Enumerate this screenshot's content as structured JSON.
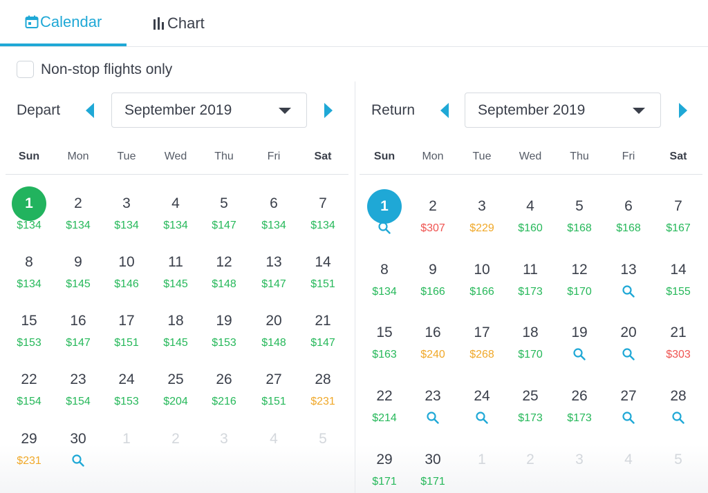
{
  "tabs": {
    "calendar": "Calendar",
    "chart": "Chart"
  },
  "nonstop_label": "Non-stop flights only",
  "colors": {
    "accent": "#1fa8d6",
    "depart_selected": "#22b35e",
    "return_selected": "#1fa8d6",
    "green": "#26b85a",
    "yellow": "#f0a829",
    "red": "#ef5350"
  },
  "icons": [
    "calendar-icon",
    "bar-chart-icon",
    "chevron-left-icon",
    "chevron-right-icon",
    "caret-down-icon",
    "search-icon"
  ],
  "depart": {
    "label": "Depart",
    "month": "September 2019",
    "weekdays": [
      "Sun",
      "Mon",
      "Tue",
      "Wed",
      "Thu",
      "Fri",
      "Sat"
    ],
    "weeks": [
      [
        {
          "d": "1",
          "p": "$134",
          "c": "green",
          "sel": true
        },
        {
          "d": "2",
          "p": "$134",
          "c": "green"
        },
        {
          "d": "3",
          "p": "$134",
          "c": "green"
        },
        {
          "d": "4",
          "p": "$134",
          "c": "green"
        },
        {
          "d": "5",
          "p": "$147",
          "c": "green"
        },
        {
          "d": "6",
          "p": "$134",
          "c": "green"
        },
        {
          "d": "7",
          "p": "$134",
          "c": "green"
        }
      ],
      [
        {
          "d": "8",
          "p": "$134",
          "c": "green"
        },
        {
          "d": "9",
          "p": "$145",
          "c": "green"
        },
        {
          "d": "10",
          "p": "$146",
          "c": "green"
        },
        {
          "d": "11",
          "p": "$145",
          "c": "green"
        },
        {
          "d": "12",
          "p": "$148",
          "c": "green"
        },
        {
          "d": "13",
          "p": "$147",
          "c": "green"
        },
        {
          "d": "14",
          "p": "$151",
          "c": "green"
        }
      ],
      [
        {
          "d": "15",
          "p": "$153",
          "c": "green"
        },
        {
          "d": "16",
          "p": "$147",
          "c": "green"
        },
        {
          "d": "17",
          "p": "$151",
          "c": "green"
        },
        {
          "d": "18",
          "p": "$145",
          "c": "green"
        },
        {
          "d": "19",
          "p": "$153",
          "c": "green"
        },
        {
          "d": "20",
          "p": "$148",
          "c": "green"
        },
        {
          "d": "21",
          "p": "$147",
          "c": "green"
        }
      ],
      [
        {
          "d": "22",
          "p": "$154",
          "c": "green"
        },
        {
          "d": "23",
          "p": "$154",
          "c": "green"
        },
        {
          "d": "24",
          "p": "$153",
          "c": "green"
        },
        {
          "d": "25",
          "p": "$204",
          "c": "green"
        },
        {
          "d": "26",
          "p": "$216",
          "c": "green"
        },
        {
          "d": "27",
          "p": "$151",
          "c": "green"
        },
        {
          "d": "28",
          "p": "$231",
          "c": "yellow"
        }
      ],
      [
        {
          "d": "29",
          "p": "$231",
          "c": "yellow"
        },
        {
          "d": "30",
          "search": true
        },
        {
          "d": "1",
          "muted": true
        },
        {
          "d": "2",
          "muted": true
        },
        {
          "d": "3",
          "muted": true
        },
        {
          "d": "4",
          "muted": true
        },
        {
          "d": "5",
          "muted": true
        }
      ]
    ]
  },
  "return": {
    "label": "Return",
    "month": "September 2019",
    "weekdays": [
      "Sun",
      "Mon",
      "Tue",
      "Wed",
      "Thu",
      "Fri",
      "Sat"
    ],
    "weeks": [
      [
        {
          "d": "1",
          "search": true,
          "sel": true
        },
        {
          "d": "2",
          "p": "$307",
          "c": "red"
        },
        {
          "d": "3",
          "p": "$229",
          "c": "yellow"
        },
        {
          "d": "4",
          "p": "$160",
          "c": "green"
        },
        {
          "d": "5",
          "p": "$168",
          "c": "green"
        },
        {
          "d": "6",
          "p": "$168",
          "c": "green"
        },
        {
          "d": "7",
          "p": "$167",
          "c": "green"
        }
      ],
      [
        {
          "d": "8",
          "p": "$134",
          "c": "green"
        },
        {
          "d": "9",
          "p": "$166",
          "c": "green"
        },
        {
          "d": "10",
          "p": "$166",
          "c": "green"
        },
        {
          "d": "11",
          "p": "$173",
          "c": "green"
        },
        {
          "d": "12",
          "p": "$170",
          "c": "green"
        },
        {
          "d": "13",
          "search": true
        },
        {
          "d": "14",
          "p": "$155",
          "c": "green"
        }
      ],
      [
        {
          "d": "15",
          "p": "$163",
          "c": "green"
        },
        {
          "d": "16",
          "p": "$240",
          "c": "yellow"
        },
        {
          "d": "17",
          "p": "$268",
          "c": "yellow"
        },
        {
          "d": "18",
          "p": "$170",
          "c": "green"
        },
        {
          "d": "19",
          "search": true
        },
        {
          "d": "20",
          "search": true
        },
        {
          "d": "21",
          "p": "$303",
          "c": "red"
        }
      ],
      [
        {
          "d": "22",
          "p": "$214",
          "c": "green"
        },
        {
          "d": "23",
          "search": true
        },
        {
          "d": "24",
          "search": true
        },
        {
          "d": "25",
          "p": "$173",
          "c": "green"
        },
        {
          "d": "26",
          "p": "$173",
          "c": "green"
        },
        {
          "d": "27",
          "search": true
        },
        {
          "d": "28",
          "search": true
        }
      ],
      [
        {
          "d": "29",
          "p": "$171",
          "c": "green"
        },
        {
          "d": "30",
          "p": "$171",
          "c": "green"
        },
        {
          "d": "1",
          "muted": true
        },
        {
          "d": "2",
          "muted": true
        },
        {
          "d": "3",
          "muted": true
        },
        {
          "d": "4",
          "muted": true
        },
        {
          "d": "5",
          "muted": true
        }
      ]
    ]
  }
}
